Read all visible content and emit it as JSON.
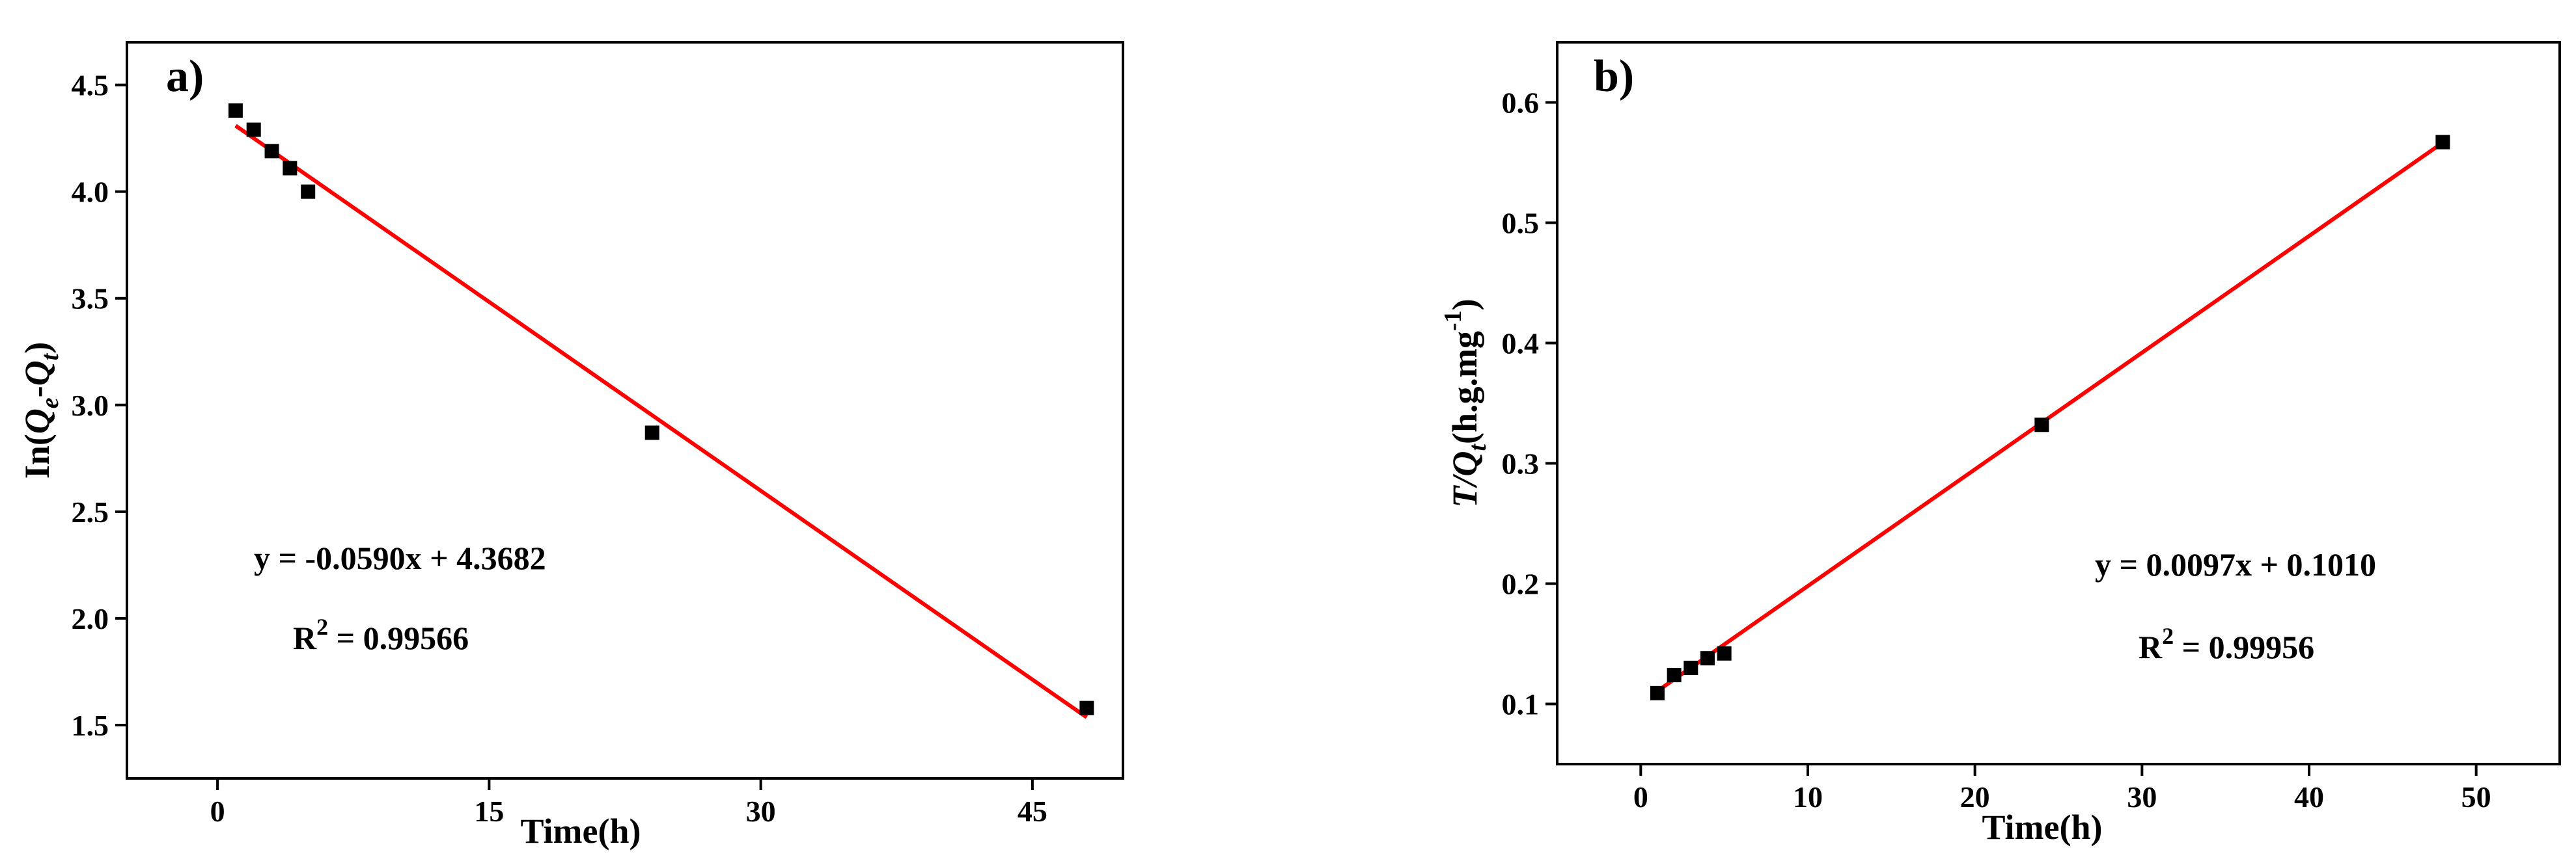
{
  "colors": {
    "fit_line": "#ff0000",
    "marker": "#000000",
    "axis": "#000000",
    "background": "#ffffff"
  },
  "chart_data": [
    {
      "type": "scatter",
      "panel_label": "a)",
      "xlabel": "Time(h)",
      "ylabel": "In(Q_e-Q_t)",
      "ylabel_parts": [
        "In(",
        "Q",
        "e",
        "-",
        "Q",
        "t",
        ")"
      ],
      "xlim": [
        -5,
        50
      ],
      "ylim": [
        1.25,
        4.7
      ],
      "xticks": [
        0,
        15,
        30,
        45
      ],
      "xticks_labels": [
        "0",
        "15",
        "30",
        "45"
      ],
      "yticks": [
        1.5,
        2.0,
        2.5,
        3.0,
        3.5,
        4.0,
        4.5
      ],
      "yticks_labels": [
        "1.5",
        "2.0",
        "2.5",
        "3.0",
        "3.5",
        "4.0",
        "4.5"
      ],
      "grid": false,
      "series": [
        {
          "marker": "square",
          "x": [
            1,
            2,
            3,
            4,
            5,
            24,
            48
          ],
          "y": [
            4.38,
            4.29,
            4.19,
            4.11,
            4.0,
            2.87,
            1.58
          ]
        }
      ],
      "fit": {
        "slope": -0.059,
        "intercept": 4.3682,
        "x_range": [
          1,
          48
        ]
      },
      "equation": "y = -0.0590x + 4.3682",
      "r2_label": "R",
      "r2_sup": "2",
      "r2_value": " = 0.99566"
    },
    {
      "type": "scatter",
      "panel_label": "b)",
      "xlabel": "Time(h)",
      "ylabel": "T/Q_t(h.g.mg^-1)",
      "ylabel_parts": [
        "T/",
        "Q",
        "t",
        "(h.g.mg",
        "-1",
        ")"
      ],
      "xlim": [
        -5,
        55
      ],
      "ylim": [
        0.05,
        0.65
      ],
      "xticks": [
        0,
        10,
        20,
        30,
        40,
        50
      ],
      "xticks_labels": [
        "0",
        "10",
        "20",
        "30",
        "40",
        "50"
      ],
      "yticks": [
        0.1,
        0.2,
        0.3,
        0.4,
        0.5,
        0.6
      ],
      "yticks_labels": [
        "0.1",
        "0.2",
        "0.3",
        "0.4",
        "0.5",
        "0.6"
      ],
      "grid": false,
      "series": [
        {
          "marker": "square",
          "x": [
            1,
            2,
            3,
            4,
            5,
            24,
            48
          ],
          "y": [
            0.109,
            0.124,
            0.13,
            0.138,
            0.142,
            0.332,
            0.567
          ]
        }
      ],
      "fit": {
        "slope": 0.0097,
        "intercept": 0.101,
        "x_range": [
          1,
          48
        ]
      },
      "equation": "y = 0.0097x + 0.1010",
      "r2_label": "R",
      "r2_sup": "2",
      "r2_value": " = 0.99956"
    }
  ]
}
